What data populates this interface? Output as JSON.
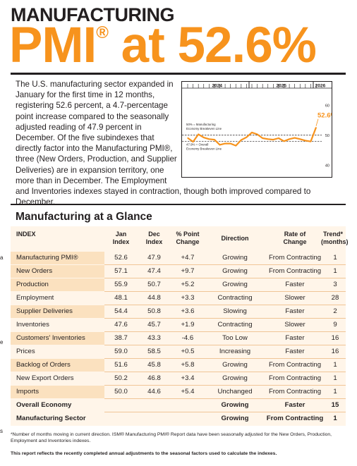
{
  "header": {
    "line1": "MANUFACTURING",
    "line2_pmi": "PMI",
    "line2_reg": "®",
    "line2_rest": " at 52.6%"
  },
  "intro_text": "The U.S. manufacturing sector expanded in January for the first time in 12 months, registering 52.6 percent, a 4.7-percentage point increase compared to the seasonally adjusted reading of 47.9 percent in December. Of the five subindexes that directly factor into the Manufacturing PMI®, three (New Orders, Production, and Supplier Deliveries) are in expansion territory, one more than in December. The Employment and Inventories indexes stayed in contraction, though both improved compared to December.",
  "chart_data": {
    "type": "line",
    "years": [
      "2024",
      "2025",
      "2026"
    ],
    "yticks": [
      40,
      50,
      60
    ],
    "ylim": [
      37,
      65
    ],
    "callout": "52.6%",
    "ref_lines": [
      {
        "value": 50,
        "label1": "50% = Manufacturing",
        "label2": "Economy Breakeven Line"
      },
      {
        "value": 47.9,
        "label1": "47.9% = Overall",
        "label2": "Economy Breakeven Line"
      }
    ],
    "series": [
      {
        "x": [
          "2024-01",
          "2024-02",
          "2024-03",
          "2024-04",
          "2024-05",
          "2024-06",
          "2024-07",
          "2024-08",
          "2024-09",
          "2024-10",
          "2024-11",
          "2024-12",
          "2025-01",
          "2025-02",
          "2025-03",
          "2025-04",
          "2025-05",
          "2025-06",
          "2025-07",
          "2025-08",
          "2025-09",
          "2025-10",
          "2025-11",
          "2025-12",
          "2026-01"
        ],
        "y": [
          49.1,
          47.8,
          50.3,
          49.2,
          48.7,
          48.5,
          46.8,
          47.2,
          47.2,
          46.5,
          48.4,
          49.3,
          50.9,
          50.3,
          49.0,
          48.7,
          48.5,
          49.0,
          48.0,
          48.7,
          49.1,
          48.7,
          48.2,
          47.9,
          52.6
        ]
      }
    ],
    "colors": {
      "line": "#f7931d",
      "ref": "#231f20"
    }
  },
  "table": {
    "title": "Manufacturing at a Glance",
    "headers": {
      "index": "INDEX",
      "jan1": "Jan",
      "jan2": "Index",
      "dec1": "Dec",
      "dec2": "Index",
      "chg1": "% Point",
      "chg2": "Change",
      "dir": "Direction",
      "rate1": "Rate of",
      "rate2": "Change",
      "trend1": "Trend*",
      "trend2": "(months)"
    },
    "rows": [
      [
        "Manufacturing PMI®",
        "52.6",
        "47.9",
        "+4.7",
        "Growing",
        "From Contracting",
        "1"
      ],
      [
        "New Orders",
        "57.1",
        "47.4",
        "+9.7",
        "Growing",
        "From Contracting",
        "1"
      ],
      [
        "Production",
        "55.9",
        "50.7",
        "+5.2",
        "Growing",
        "Faster",
        "3"
      ],
      [
        "Employment",
        "48.1",
        "44.8",
        "+3.3",
        "Contracting",
        "Slower",
        "28"
      ],
      [
        "Supplier Deliveries",
        "54.4",
        "50.8",
        "+3.6",
        "Slowing",
        "Faster",
        "2"
      ],
      [
        "Inventories",
        "47.6",
        "45.7",
        "+1.9",
        "Contracting",
        "Slower",
        "9"
      ],
      [
        "Customers' Inventories",
        "38.7",
        "43.3",
        "-4.6",
        "Too Low",
        "Faster",
        "16"
      ],
      [
        "Prices",
        "59.0",
        "58.5",
        "+0.5",
        "Increasing",
        "Faster",
        "16"
      ],
      [
        "Backlog of Orders",
        "51.6",
        "45.8",
        "+5.8",
        "Growing",
        "From Contracting",
        "1"
      ],
      [
        "New Export Orders",
        "50.2",
        "46.8",
        "+3.4",
        "Growing",
        "From Contracting",
        "1"
      ],
      [
        "Imports",
        "50.0",
        "44.6",
        "+5.4",
        "Unchanged",
        "From Contracting",
        "1"
      ],
      [
        "Overall Economy",
        "",
        "",
        "",
        "Growing",
        "Faster",
        "15"
      ],
      [
        "Manufacturing Sector",
        "",
        "",
        "",
        "Growing",
        "From Contracting",
        "1"
      ]
    ]
  },
  "footnote1": "*Number of months moving in current direction. ISM® Manufacturing PMI® Report data have been seasonally adjusted for the New Orders, Production, Employment and Inventories indexes.",
  "footnote2": "This report reflects the recently completed annual adjustments to the seasonal factors used to calculate the indexes.",
  "edge_marks": [
    "a",
    "e",
    "s"
  ]
}
